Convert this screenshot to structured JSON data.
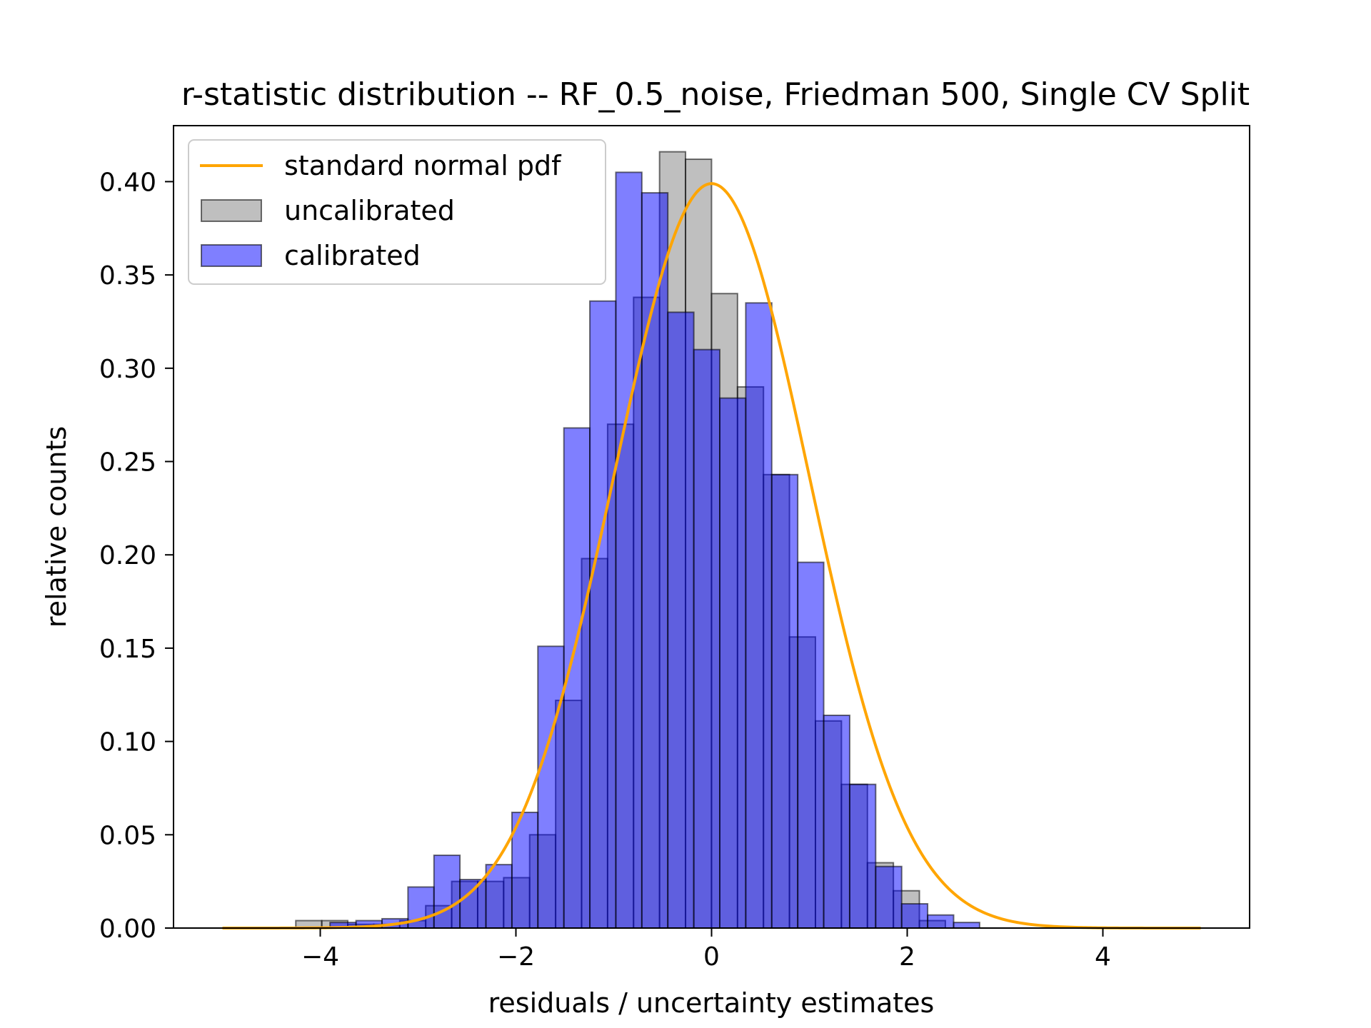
{
  "chart_data": {
    "type": "bar",
    "title": "r-statistic distribution -- RF_0.5_noise, Friedman 500, Single CV Split",
    "xlabel": "residuals / uncertainty estimates",
    "ylabel": "relative counts",
    "xlim": [
      -5.5,
      5.5
    ],
    "ylim": [
      0,
      0.43
    ],
    "xticks": [
      -4,
      -2,
      0,
      2,
      4
    ],
    "xtick_labels": [
      "−4",
      "−2",
      "0",
      "2",
      "4"
    ],
    "yticks": [
      0.0,
      0.05,
      0.1,
      0.15,
      0.2,
      0.25,
      0.3,
      0.35,
      0.4
    ],
    "ytick_labels": [
      "0.00",
      "0.05",
      "0.10",
      "0.15",
      "0.20",
      "0.25",
      "0.30",
      "0.35",
      "0.40"
    ],
    "grid": false,
    "legend_position": "upper-left",
    "legend": [
      {
        "label": "standard normal pdf",
        "kind": "line",
        "color": "#ffa500"
      },
      {
        "label": "uncalibrated",
        "kind": "patch",
        "color": "#808080"
      },
      {
        "label": "calibrated",
        "kind": "patch",
        "color": "#0000ff"
      }
    ],
    "series": [
      {
        "name": "uncalibrated",
        "kind": "histogram",
        "color": "#808080",
        "alpha": 0.5,
        "edge_color": "#000000",
        "bin_start": -4.25,
        "bin_width": 0.2656,
        "values": [
          0.004,
          0.004,
          0.002,
          0.002,
          0.004,
          0.012,
          0.025,
          0.025,
          0.027,
          0.05,
          0.122,
          0.198,
          0.27,
          0.338,
          0.416,
          0.412,
          0.34,
          0.29,
          0.243,
          0.156,
          0.111,
          0.077,
          0.035,
          0.02,
          0.004
        ]
      },
      {
        "name": "calibrated",
        "kind": "histogram",
        "color": "#0000ff",
        "alpha": 0.5,
        "edge_color": "#000000",
        "bin_start": -3.9,
        "bin_width": 0.2656,
        "values": [
          0.003,
          0.004,
          0.005,
          0.022,
          0.039,
          0.026,
          0.034,
          0.062,
          0.151,
          0.268,
          0.336,
          0.405,
          0.394,
          0.33,
          0.31,
          0.284,
          0.335,
          0.243,
          0.196,
          0.114,
          0.077,
          0.033,
          0.013,
          0.007,
          0.003
        ]
      },
      {
        "name": "standard normal pdf",
        "kind": "line",
        "color": "#ffa500",
        "function": "standard-normal-pdf",
        "x_range": [
          -5,
          5
        ]
      }
    ]
  }
}
